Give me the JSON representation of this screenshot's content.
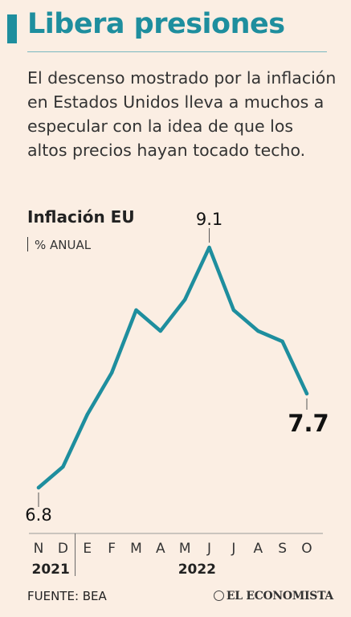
{
  "title": "Libera presiones",
  "subtitle": "El descenso mostrado por la inflación en Estados Unidos lleva a muchos a especular con la idea de que los altos precios hayan tocado techo.",
  "source": "FUENTE:  BEA",
  "brand": "EL ECONOMISTA",
  "colors": {
    "accent": "#1e8e9e",
    "background": "#fbeee3",
    "text": "#222222"
  },
  "chart_data": {
    "type": "line",
    "title": "Inflación EU",
    "ylabel": "% ANUAL",
    "categories": [
      "N",
      "D",
      "E",
      "F",
      "M",
      "A",
      "M",
      "J",
      "J",
      "A",
      "S",
      "O"
    ],
    "year_labels": [
      {
        "label": "2021",
        "from": 0,
        "to": 1
      },
      {
        "label": "2022",
        "from": 2,
        "to": 11
      }
    ],
    "values": [
      6.8,
      7.0,
      7.5,
      7.9,
      8.5,
      8.3,
      8.6,
      9.1,
      8.5,
      8.3,
      8.2,
      7.7
    ],
    "data_labels": [
      {
        "index": 0,
        "text": "6.8"
      },
      {
        "index": 7,
        "text": "9.1"
      },
      {
        "index": 11,
        "text": "7.7"
      }
    ],
    "ylim": [
      6.7,
      9.2
    ],
    "grid": false,
    "line_color": "#1e8e9e"
  }
}
